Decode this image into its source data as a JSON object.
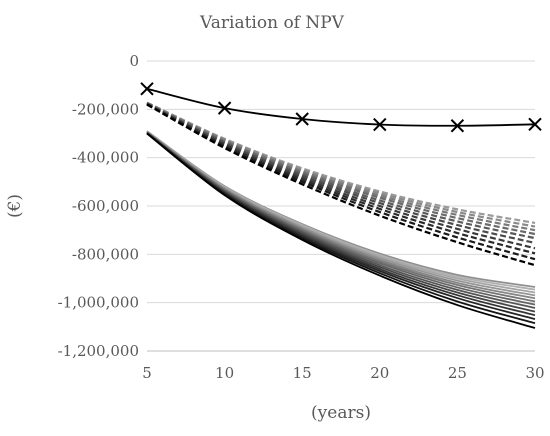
{
  "chart_data": {
    "type": "line",
    "title": "Variation of NPV",
    "xlabel": "(years)",
    "ylabel": "(€)",
    "x": [
      5,
      10,
      15,
      20,
      25,
      30
    ],
    "xlim": [
      5,
      30
    ],
    "ylim": [
      -1200000,
      0
    ],
    "y_ticks": [
      0,
      -200000,
      -400000,
      -600000,
      -800000,
      -1000000,
      -1200000
    ],
    "y_tick_labels": [
      "0",
      "-200,000",
      "-400,000",
      "-600,000",
      "-800,000",
      "-1,000,000",
      "-1,200,000"
    ],
    "x_tick_labels": [
      "5",
      "10",
      "15",
      "20",
      "25",
      "30"
    ],
    "grid": "horizontal",
    "legend": "none",
    "series": [
      {
        "style": "solid-marker-x",
        "color": "#000000",
        "values": [
          -115000,
          -195000,
          -240000,
          -263000,
          -268000,
          -262000
        ]
      },
      {
        "style": "dashed",
        "color": "#000000",
        "values": [
          -180000,
          -360000,
          -510000,
          -640000,
          -750000,
          -845000
        ]
      },
      {
        "style": "dashed",
        "color": "#1a1a1a",
        "values": [
          -180000,
          -355000,
          -500000,
          -625000,
          -730000,
          -820000
        ]
      },
      {
        "style": "dashed",
        "color": "#2a2a2a",
        "values": [
          -179000,
          -350000,
          -492000,
          -612000,
          -712000,
          -796000
        ]
      },
      {
        "style": "dashed",
        "color": "#3a3a3a",
        "values": [
          -178000,
          -345000,
          -484000,
          -600000,
          -695000,
          -775000
        ]
      },
      {
        "style": "dashed",
        "color": "#4a4a4a",
        "values": [
          -177000,
          -341000,
          -476000,
          -588000,
          -679000,
          -753000
        ]
      },
      {
        "style": "dashed",
        "color": "#5a5a5a",
        "values": [
          -176000,
          -337000,
          -469000,
          -577000,
          -664000,
          -733000
        ]
      },
      {
        "style": "dashed",
        "color": "#6a6a6a",
        "values": [
          -175000,
          -333000,
          -462000,
          -566000,
          -650000,
          -716000
        ]
      },
      {
        "style": "dashed",
        "color": "#7a7a7a",
        "values": [
          -174000,
          -329000,
          -456000,
          -557000,
          -637000,
          -700000
        ]
      },
      {
        "style": "dashed",
        "color": "#8a8a8a",
        "values": [
          -173000,
          -325000,
          -450000,
          -548000,
          -625000,
          -685000
        ]
      },
      {
        "style": "dashed",
        "color": "#9a9a9a",
        "values": [
          -172000,
          -322000,
          -444000,
          -540000,
          -614000,
          -670000
        ]
      },
      {
        "style": "solid",
        "color": "#000000",
        "values": [
          -300000,
          -555000,
          -740000,
          -888000,
          -1010000,
          -1105000
        ]
      },
      {
        "style": "solid",
        "color": "#151515",
        "values": [
          -300000,
          -552000,
          -733000,
          -878000,
          -995000,
          -1085000
        ]
      },
      {
        "style": "solid",
        "color": "#252525",
        "values": [
          -299000,
          -548000,
          -727000,
          -869000,
          -981000,
          -1068000
        ]
      },
      {
        "style": "solid",
        "color": "#353535",
        "values": [
          -299000,
          -545000,
          -721000,
          -861000,
          -969000,
          -1052000
        ]
      },
      {
        "style": "solid",
        "color": "#454545",
        "values": [
          -298000,
          -542000,
          -715000,
          -853000,
          -958000,
          -1037000
        ]
      },
      {
        "style": "solid",
        "color": "#555555",
        "values": [
          -297000,
          -539000,
          -709000,
          -845000,
          -947000,
          -1022000
        ]
      },
      {
        "style": "solid",
        "color": "#656565",
        "values": [
          -296000,
          -536000,
          -704000,
          -837000,
          -937000,
          -1008000
        ]
      },
      {
        "style": "solid",
        "color": "#757575",
        "values": [
          -295000,
          -533000,
          -699000,
          -830000,
          -927000,
          -995000
        ]
      },
      {
        "style": "solid",
        "color": "#858585",
        "values": [
          -294000,
          -530000,
          -694000,
          -823000,
          -918000,
          -982000
        ]
      },
      {
        "style": "solid",
        "color": "#959595",
        "values": [
          -293000,
          -527000,
          -689000,
          -816000,
          -909000,
          -970000
        ]
      },
      {
        "style": "solid",
        "color": "#a5a5a5",
        "values": [
          -292000,
          -524000,
          -684000,
          -809000,
          -900000,
          -958000
        ]
      },
      {
        "style": "solid",
        "color": "#b0b0b0",
        "values": [
          -291000,
          -521000,
          -679000,
          -803000,
          -892000,
          -946000
        ]
      },
      {
        "style": "solid",
        "color": "#8f8f8f",
        "values": [
          -290000,
          -518000,
          -675000,
          -797000,
          -885000,
          -935000
        ]
      }
    ]
  }
}
